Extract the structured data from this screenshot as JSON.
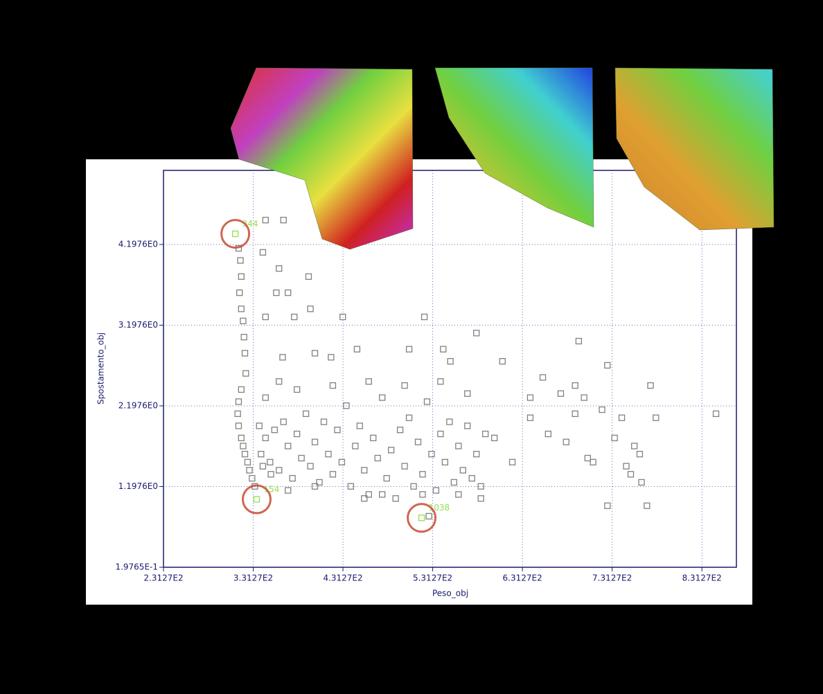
{
  "chart_data": {
    "type": "scatter",
    "xlabel": "Peso_obj",
    "ylabel": "Spostamento_obj",
    "xlim": [
      231.27,
      869.73
    ],
    "ylim": [
      0.19765,
      5.116
    ],
    "xticks": [
      {
        "value": 231.27,
        "label": "2.3127E2"
      },
      {
        "value": 331.27,
        "label": "3.3127E2"
      },
      {
        "value": 431.27,
        "label": "4.3127E2"
      },
      {
        "value": 531.27,
        "label": "5.3127E2"
      },
      {
        "value": 631.27,
        "label": "6.3127E2"
      },
      {
        "value": 731.27,
        "label": "7.3127E2"
      },
      {
        "value": 831.27,
        "label": "8.3127E2"
      }
    ],
    "yticks": [
      {
        "value": 0.19765,
        "label": "1.9765E-1"
      },
      {
        "value": 1.1976,
        "label": "1.1976E0"
      },
      {
        "value": 2.1976,
        "label": "2.1976E0"
      },
      {
        "value": 3.1976,
        "label": "3.1976E0"
      },
      {
        "value": 4.1976,
        "label": "4.1976E0"
      }
    ],
    "grid": true,
    "series": [
      {
        "color": "#808080",
        "x": [
          315,
          317,
          318,
          316,
          318,
          320,
          321,
          322,
          323,
          318,
          315,
          314,
          315,
          318,
          320,
          322,
          325,
          327,
          330,
          333,
          345,
          365,
          342,
          360,
          393,
          357,
          370,
          345,
          377,
          431,
          522,
          395,
          364,
          400,
          418,
          447,
          505,
          543,
          551,
          580,
          609,
          694,
          654,
          726,
          774,
          847,
          640,
          674,
          700,
          660,
          680,
          704,
          734,
          756,
          762,
          747,
          752,
          764,
          726,
          770,
          690,
          720,
          742,
          780,
          640,
          600,
          620,
          710,
          690,
          340,
          345,
          350,
          355,
          360,
          365,
          370,
          375,
          380,
          385,
          390,
          395,
          400,
          405,
          410,
          415,
          420,
          425,
          430,
          435,
          440,
          445,
          450,
          455,
          460,
          465,
          470,
          475,
          480,
          485,
          490,
          495,
          500,
          505,
          510,
          515,
          520,
          525,
          530,
          535,
          540,
          545,
          550,
          555,
          560,
          565,
          570,
          575,
          580,
          585,
          590,
          345,
          360,
          380,
          420,
          460,
          500,
          540,
          570,
          455,
          475,
          520,
          560,
          585,
          400,
          370,
          351,
          338,
          342,
          527
        ],
        "values": [
          4.15,
          4.0,
          3.8,
          3.6,
          3.4,
          3.25,
          3.05,
          2.85,
          2.6,
          2.4,
          2.25,
          2.1,
          1.95,
          1.8,
          1.7,
          1.6,
          1.5,
          1.4,
          1.3,
          1.2,
          4.5,
          4.5,
          4.1,
          3.9,
          3.8,
          3.6,
          3.6,
          3.3,
          3.3,
          3.3,
          3.3,
          3.4,
          2.8,
          2.85,
          2.8,
          2.9,
          2.9,
          2.9,
          2.75,
          3.1,
          2.75,
          3.0,
          2.55,
          2.7,
          2.45,
          2.1,
          2.3,
          2.35,
          2.3,
          1.85,
          1.75,
          1.55,
          1.8,
          1.7,
          1.6,
          1.45,
          1.35,
          1.25,
          0.96,
          0.96,
          2.1,
          2.15,
          2.05,
          2.05,
          2.05,
          1.8,
          1.5,
          1.5,
          2.45,
          1.6,
          1.8,
          1.5,
          1.9,
          1.4,
          2.0,
          1.7,
          1.3,
          1.85,
          1.55,
          2.1,
          1.45,
          1.75,
          1.25,
          2.0,
          1.6,
          1.35,
          1.9,
          1.5,
          2.2,
          1.2,
          1.7,
          1.95,
          1.4,
          1.1,
          1.8,
          1.55,
          2.3,
          1.3,
          1.65,
          1.05,
          1.9,
          1.45,
          2.05,
          1.2,
          1.75,
          1.35,
          2.25,
          1.6,
          1.15,
          1.85,
          1.5,
          2.0,
          1.25,
          1.7,
          1.4,
          1.95,
          1.3,
          1.6,
          1.2,
          1.85,
          2.3,
          2.5,
          2.4,
          2.45,
          2.5,
          2.45,
          2.5,
          2.35,
          1.05,
          1.1,
          1.1,
          1.1,
          1.05,
          1.2,
          1.15,
          1.35,
          1.95,
          1.45,
          0.83
        ]
      },
      {
        "color": "#90e050",
        "x": [
          311.3,
          335.1,
          518.9
        ],
        "values": [
          4.33,
          1.04,
          0.81
        ],
        "labels": [
          "344",
          "154",
          "1038"
        ]
      }
    ]
  }
}
